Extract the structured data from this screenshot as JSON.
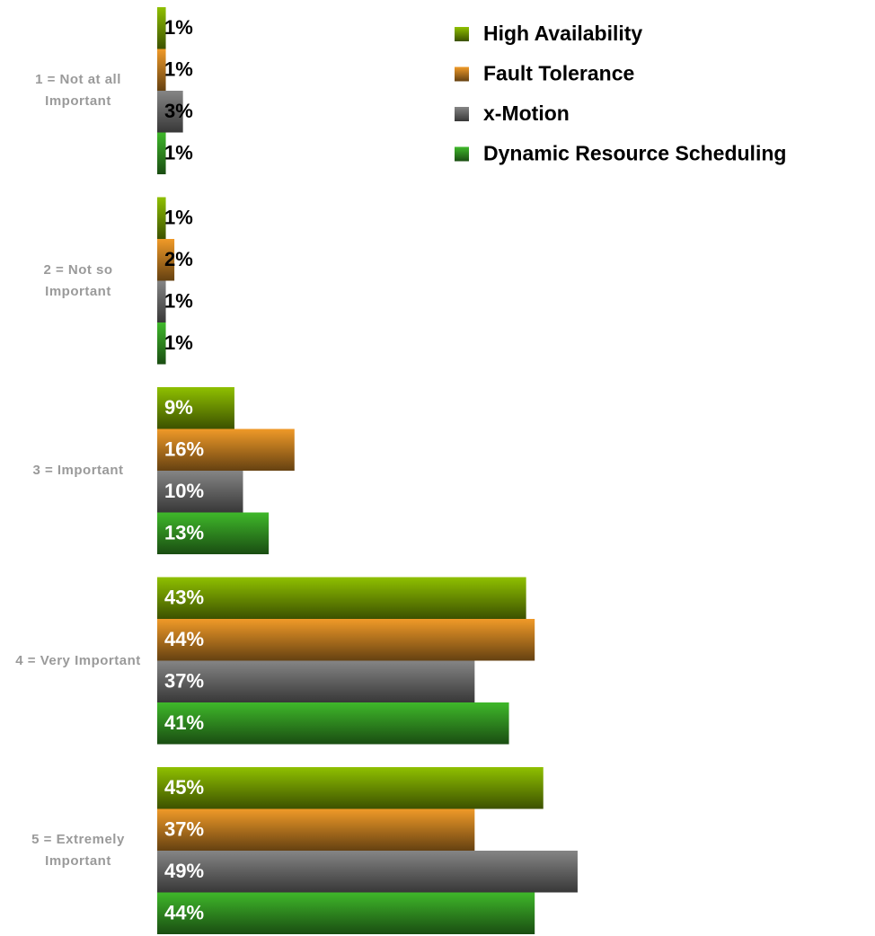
{
  "chart_data": {
    "type": "bar",
    "orientation": "horizontal",
    "categories": [
      "1 = Not at all Important",
      "2 = Not so Important",
      "3 = Important",
      "4 = Very Important",
      "5 = Extremely Important"
    ],
    "series": [
      {
        "name": "High Availability",
        "color": "#8fc000",
        "values": [
          1,
          1,
          9,
          43,
          45
        ],
        "value_labels": [
          "1%",
          "1%",
          "9%",
          "43%",
          "45%"
        ]
      },
      {
        "name": "Fault Tolerance",
        "color": "#f09a28",
        "values": [
          1,
          2,
          16,
          44,
          37
        ],
        "value_labels": [
          "1%",
          "2%",
          "16%",
          "44%",
          "37%"
        ]
      },
      {
        "name": "x-Motion",
        "color": "#858585",
        "values": [
          3,
          1,
          10,
          37,
          49
        ],
        "value_labels": [
          "3%",
          "1%",
          "10%",
          "37%",
          "49%"
        ]
      },
      {
        "name": "Dynamic Resource Scheduling",
        "color": "#3fb82a",
        "values": [
          1,
          1,
          13,
          41,
          44
        ],
        "value_labels": [
          "1%",
          "1%",
          "13%",
          "41%",
          "44%"
        ]
      }
    ],
    "legend": "top-right"
  }
}
